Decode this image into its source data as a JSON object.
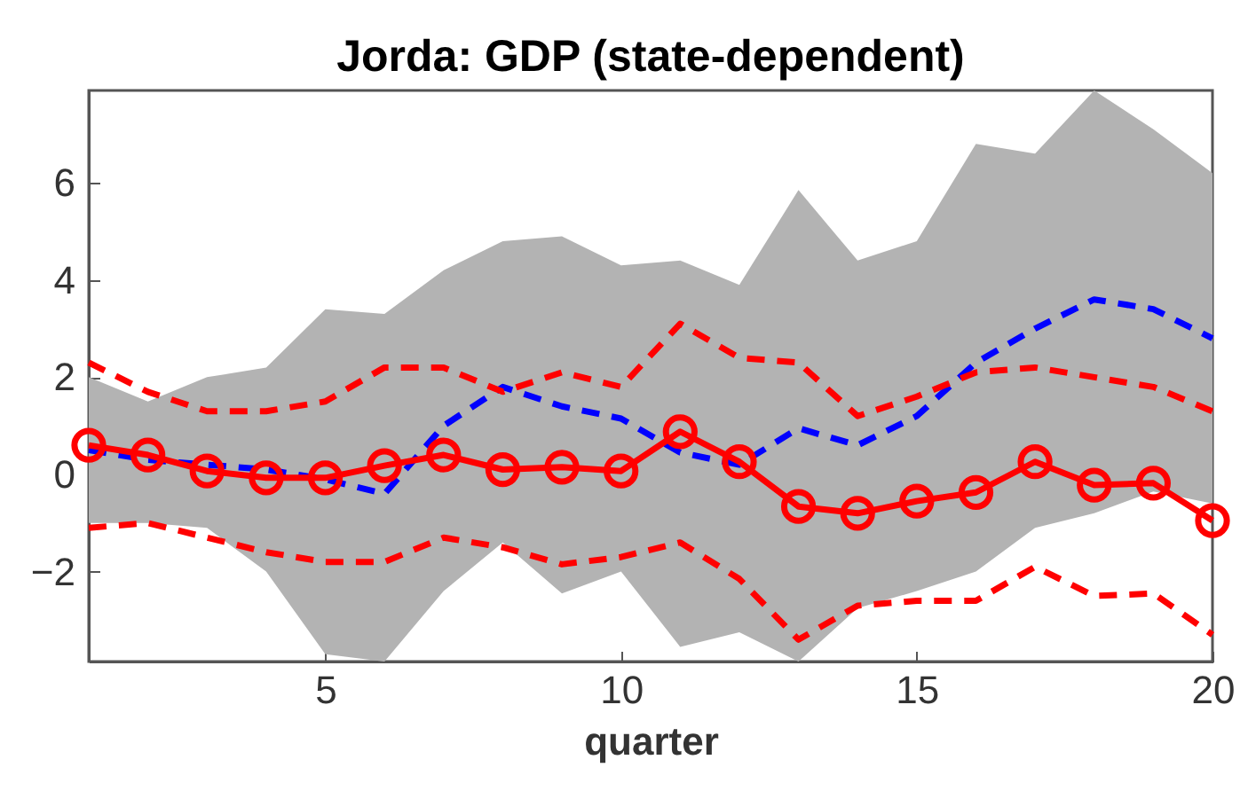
{
  "chart_data": {
    "type": "line",
    "title": "Jorda: GDP (state-dependent)",
    "xlabel": "quarter",
    "x": [
      1,
      2,
      3,
      4,
      5,
      6,
      7,
      8,
      9,
      10,
      11,
      12,
      13,
      14,
      15,
      16,
      17,
      18,
      19,
      20
    ],
    "xlim": [
      1,
      20
    ],
    "xticks": [
      5,
      10,
      15,
      20
    ],
    "ylim": [
      -3.85,
      7.9
    ],
    "yticks": [
      -2,
      0,
      2,
      4,
      6
    ],
    "grid": false,
    "series": [
      {
        "color": "#0000ff",
        "line_style": "dashed",
        "marker": "none",
        "values": [
          0.5,
          0.3,
          0.2,
          0.1,
          -0.1,
          -0.4,
          1.0,
          1.8,
          1.4,
          1.15,
          0.45,
          0.2,
          0.95,
          0.6,
          1.2,
          2.3,
          3.0,
          3.6,
          3.4,
          2.8
        ],
        "lower": [
          -1.0,
          -1.0,
          -1.1,
          -2.0,
          -3.7,
          -3.85,
          -2.4,
          -1.4,
          -2.45,
          -2.0,
          -3.55,
          -3.25,
          -3.85,
          -2.75,
          -2.4,
          -2.0,
          -1.1,
          -0.8,
          -0.35,
          -0.6
        ],
        "upper": [
          2.0,
          1.5,
          2.0,
          2.2,
          3.4,
          3.3,
          4.2,
          4.8,
          4.9,
          4.3,
          4.4,
          3.9,
          5.85,
          4.4,
          4.8,
          6.8,
          6.6,
          7.9,
          7.1,
          6.2
        ]
      },
      {
        "color": "#ff0000",
        "line_style": "dashed",
        "marker": "none",
        "values": [
          2.3,
          1.7,
          1.3,
          1.3,
          1.5,
          2.2,
          2.2,
          1.7,
          2.1,
          1.8,
          3.1,
          2.4,
          2.3,
          1.2,
          1.6,
          2.1,
          2.2,
          2.0,
          1.8,
          1.3
        ]
      },
      {
        "color": "#ff0000",
        "line_style": "dashed",
        "marker": "none",
        "values": [
          -1.1,
          -1.0,
          -1.3,
          -1.6,
          -1.8,
          -1.8,
          -1.3,
          -1.5,
          -1.85,
          -1.7,
          -1.4,
          -2.15,
          -3.4,
          -2.7,
          -2.6,
          -2.6,
          -1.9,
          -2.5,
          -2.45,
          -3.3
        ]
      },
      {
        "color": "#ff0000",
        "line_style": "solid",
        "marker": "circle",
        "values": [
          0.6,
          0.4,
          0.07,
          -0.07,
          -0.07,
          0.18,
          0.4,
          0.1,
          0.15,
          0.07,
          0.88,
          0.26,
          -0.66,
          -0.8,
          -0.55,
          -0.37,
          0.26,
          -0.22,
          -0.18,
          -0.95
        ]
      }
    ]
  }
}
